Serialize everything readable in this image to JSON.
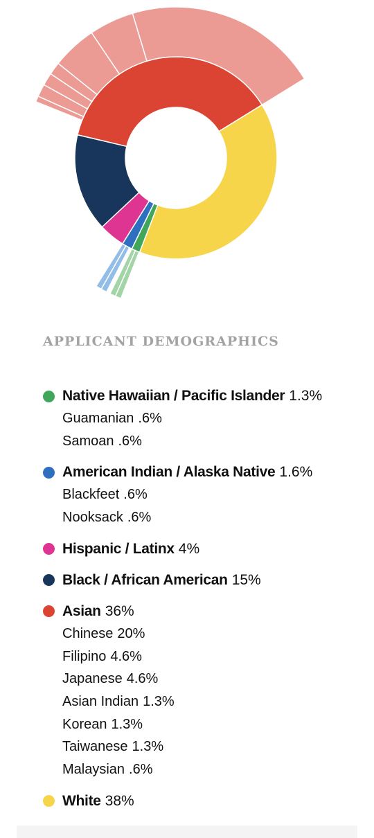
{
  "chart_data": {
    "type": "pie",
    "variant": "sunburst",
    "heading": "APPLICANT DEMOGRAPHICS",
    "groups": [
      {
        "name": "Native Hawaiian / Pacific Islander",
        "pct_label": "1.3%",
        "value": 1.3,
        "color": "#3fa65a",
        "sub_color": "#a3d4a6",
        "subs": [
          {
            "name": "Guamanian",
            "pct_label": ".6%",
            "value": 0.6
          },
          {
            "name": "Samoan",
            "pct_label": ".6%",
            "value": 0.6
          }
        ]
      },
      {
        "name": "American Indian / Alaska Native",
        "pct_label": "1.6%",
        "value": 1.6,
        "color": "#2e6fbf",
        "sub_color": "#92bde6",
        "subs": [
          {
            "name": "Blackfeet",
            "pct_label": ".6%",
            "value": 0.6
          },
          {
            "name": "Nooksack",
            "pct_label": ".6%",
            "value": 0.6
          }
        ]
      },
      {
        "name": "Hispanic / Latinx",
        "pct_label": "4%",
        "value": 4,
        "color": "#de3592",
        "sub_color": "#f2a7cf",
        "subs": []
      },
      {
        "name": "Black / African American",
        "pct_label": "15%",
        "value": 15,
        "color": "#18365c",
        "sub_color": "#8b9bb3",
        "subs": []
      },
      {
        "name": "Asian",
        "pct_label": "36%",
        "value": 36,
        "color": "#db4333",
        "sub_color": "#eb9a94",
        "subs": [
          {
            "name": "Chinese",
            "pct_label": "20%",
            "value": 20
          },
          {
            "name": "Filipino",
            "pct_label": "4.6%",
            "value": 4.6
          },
          {
            "name": "Japanese",
            "pct_label": "4.6%",
            "value": 4.6
          },
          {
            "name": "Asian Indian",
            "pct_label": "1.3%",
            "value": 1.3
          },
          {
            "name": "Korean",
            "pct_label": "1.3%",
            "value": 1.3
          },
          {
            "name": "Taiwanese",
            "pct_label": "1.3%",
            "value": 1.3
          },
          {
            "name": "Malaysian",
            "pct_label": ".6%",
            "value": 0.6
          }
        ]
      },
      {
        "name": "White",
        "pct_label": "38%",
        "value": 38,
        "color": "#f7d54a",
        "sub_color": "#fbe9a0",
        "subs": []
      }
    ]
  }
}
